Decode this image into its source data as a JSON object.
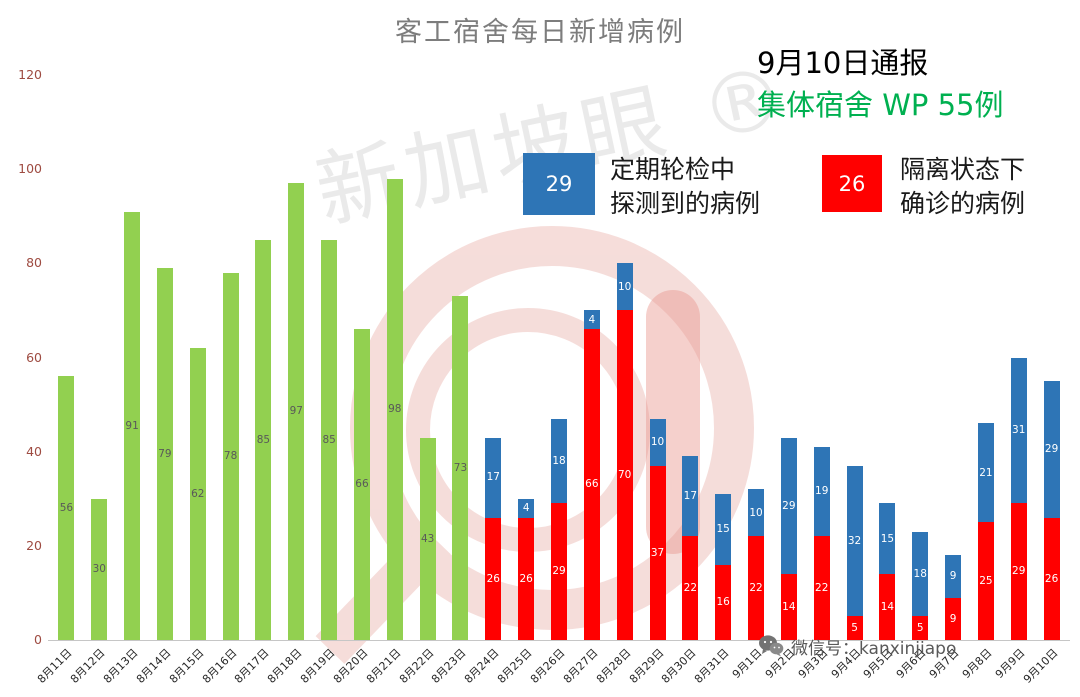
{
  "title": "客工宿舍每日新增病例",
  "annotations": {
    "report_date": "9月10日通报",
    "dorm_total": "集体宿舍 WP 55例",
    "dorm_total_color": "#00B050"
  },
  "legend": {
    "blue": {
      "value": "29",
      "line1": "定期轮检中",
      "line2": "探测到的病例",
      "color": "#2E75B6"
    },
    "red": {
      "value": "26",
      "line1": "隔离状态下",
      "line2": "确诊的病例",
      "color": "#FF0000"
    }
  },
  "watermark": {
    "text": "新加坡眼 ®",
    "logo_color": "#E9AFA9"
  },
  "footer": {
    "wechat_label": "微信号：kanxinjiapo"
  },
  "chart_data": {
    "type": "bar",
    "stacked": true,
    "title": "客工宿舍每日新增病例",
    "grid": false,
    "legend_position": "top",
    "y_min": 0,
    "y_max": 120,
    "y_ticks": [
      0,
      20,
      40,
      60,
      80,
      100,
      120
    ],
    "axis_label_color": "#9E4B41",
    "category_label_color": "#262626",
    "categories": [
      "8月11日",
      "8月12日",
      "8月13日",
      "8月14日",
      "8月15日",
      "8月16日",
      "8月17日",
      "8月18日",
      "8月19日",
      "8月20日",
      "8月21日",
      "8月22日",
      "8月23日",
      "8月24日",
      "8月25日",
      "8月26日",
      "8月27日",
      "8月28日",
      "8月29日",
      "8月30日",
      "8月31日",
      "9月1日",
      "9月2日",
      "9月3日",
      "9月4日",
      "9月5日",
      "9月6日",
      "9月7日",
      "9月8日",
      "9月9日",
      "9月10日"
    ],
    "series": [
      {
        "key": "green",
        "name": null,
        "color": "#92D050",
        "label_color": "#595959",
        "values": [
          56,
          30,
          91,
          79,
          62,
          78,
          85,
          97,
          85,
          66,
          98,
          43,
          73,
          null,
          null,
          null,
          null,
          null,
          null,
          null,
          null,
          null,
          null,
          null,
          null,
          null,
          null,
          null,
          null,
          null,
          null
        ]
      },
      {
        "key": "red",
        "name": "隔离状态下确诊的病例",
        "color": "#FF0000",
        "label_color": "#FFFFFF",
        "values": [
          null,
          null,
          null,
          null,
          null,
          null,
          null,
          null,
          null,
          null,
          null,
          null,
          null,
          26,
          26,
          29,
          66,
          70,
          37,
          22,
          16,
          22,
          14,
          22,
          5,
          14,
          5,
          9,
          25,
          29,
          26
        ]
      },
      {
        "key": "blue",
        "name": "定期轮检中探测到的病例",
        "color": "#2E75B6",
        "label_color": "#FFFFFF",
        "values": [
          null,
          null,
          null,
          null,
          null,
          null,
          null,
          null,
          null,
          null,
          null,
          null,
          null,
          17,
          4,
          18,
          4,
          10,
          10,
          17,
          15,
          10,
          29,
          19,
          32,
          15,
          18,
          9,
          21,
          31,
          29
        ]
      }
    ]
  }
}
